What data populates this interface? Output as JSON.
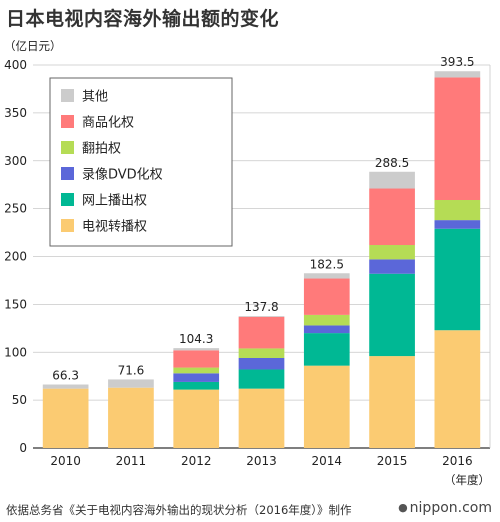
{
  "title": "日本电视内容海外输出额的变化",
  "source": "依据总务省《关于电视内容海外输出的现状分析（2016年度）》制作",
  "logo": "nippon.com",
  "chart_data": {
    "type": "bar",
    "stacked": true,
    "y_unit_label": "（亿日元）",
    "x_unit_label": "（年度）",
    "ylim": [
      0,
      400
    ],
    "yticks": [
      0,
      50,
      100,
      150,
      200,
      250,
      300,
      350,
      400
    ],
    "categories": [
      "2010",
      "2011",
      "2012",
      "2013",
      "2014",
      "2015",
      "2016"
    ],
    "totals": [
      66.3,
      71.6,
      104.3,
      137.8,
      182.5,
      288.5,
      393.5
    ],
    "grid": true,
    "legend_position": "top-left",
    "series": [
      {
        "name": "电视转播权",
        "color": "#FBCB72",
        "values": [
          62,
          63,
          61,
          62,
          86,
          96,
          123
        ]
      },
      {
        "name": "网上播出权",
        "color": "#00B894",
        "values": [
          0,
          0,
          8,
          20,
          34,
          86,
          106
        ]
      },
      {
        "name": "录像DVD化权",
        "color": "#5B67D9",
        "values": [
          0,
          0,
          9,
          12,
          8,
          15,
          9
        ]
      },
      {
        "name": "翻拍权",
        "color": "#B5DC55",
        "values": [
          0,
          0,
          6,
          10,
          11,
          15,
          21
        ]
      },
      {
        "name": "商品化权",
        "color": "#FF7A7A",
        "values": [
          0,
          0,
          18,
          33,
          38,
          59,
          128
        ]
      },
      {
        "name": "其他",
        "color": "#CCCCCC",
        "values": [
          4.3,
          8.6,
          2.3,
          0.8,
          5.5,
          17.5,
          6.5
        ]
      }
    ]
  }
}
